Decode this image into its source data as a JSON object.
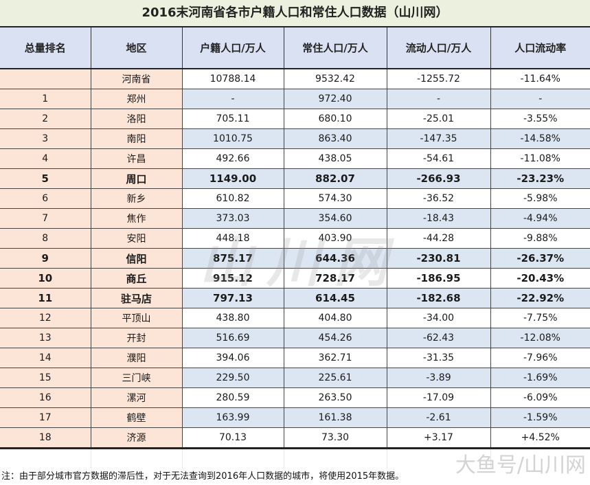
{
  "title": "2016末河南省各市户籍人口和常住人口数据（山川网）",
  "table": {
    "headers": [
      "总量排名",
      "地区",
      "户籍人口/万人",
      "常住人口/万人",
      "流动人口/万人",
      "人口流动率"
    ],
    "rows": [
      {
        "rank": "",
        "region": "河南省",
        "registered": "10788.14",
        "resident": "9532.42",
        "floating": "-1255.72",
        "rate": "-11.64%",
        "bold": false
      },
      {
        "rank": "1",
        "region": "郑州",
        "registered": "-",
        "resident": "972.40",
        "floating": "-",
        "rate": "-",
        "bold": false
      },
      {
        "rank": "2",
        "region": "洛阳",
        "registered": "705.11",
        "resident": "680.10",
        "floating": "-25.01",
        "rate": "-3.55%",
        "bold": false
      },
      {
        "rank": "3",
        "region": "南阳",
        "registered": "1010.75",
        "resident": "863.40",
        "floating": "-147.35",
        "rate": "-14.58%",
        "bold": false
      },
      {
        "rank": "4",
        "region": "许昌",
        "registered": "492.66",
        "resident": "438.05",
        "floating": "-54.61",
        "rate": "-11.08%",
        "bold": false
      },
      {
        "rank": "5",
        "region": "周口",
        "registered": "1149.00",
        "resident": "882.07",
        "floating": "-266.93",
        "rate": "-23.23%",
        "bold": true
      },
      {
        "rank": "6",
        "region": "新乡",
        "registered": "610.82",
        "resident": "574.30",
        "floating": "-36.52",
        "rate": "-5.98%",
        "bold": false
      },
      {
        "rank": "7",
        "region": "焦作",
        "registered": "373.03",
        "resident": "354.60",
        "floating": "-18.43",
        "rate": "-4.94%",
        "bold": false
      },
      {
        "rank": "8",
        "region": "安阳",
        "registered": "448.18",
        "resident": "403.90",
        "floating": "-44.28",
        "rate": "-9.88%",
        "bold": false
      },
      {
        "rank": "9",
        "region": "信阳",
        "registered": "875.17",
        "resident": "644.36",
        "floating": "-230.81",
        "rate": "-26.37%",
        "bold": true
      },
      {
        "rank": "10",
        "region": "商丘",
        "registered": "915.12",
        "resident": "728.17",
        "floating": "-186.95",
        "rate": "-20.43%",
        "bold": true
      },
      {
        "rank": "11",
        "region": "驻马店",
        "registered": "797.13",
        "resident": "614.45",
        "floating": "-182.68",
        "rate": "-22.92%",
        "bold": true
      },
      {
        "rank": "12",
        "region": "平顶山",
        "registered": "438.80",
        "resident": "404.80",
        "floating": "-34.00",
        "rate": "-7.75%",
        "bold": false
      },
      {
        "rank": "13",
        "region": "开封",
        "registered": "516.69",
        "resident": "454.26",
        "floating": "-62.43",
        "rate": "-12.08%",
        "bold": false
      },
      {
        "rank": "14",
        "region": "濮阳",
        "registered": "394.06",
        "resident": "362.71",
        "floating": "-31.35",
        "rate": "-7.96%",
        "bold": false
      },
      {
        "rank": "15",
        "region": "三门峡",
        "registered": "229.50",
        "resident": "225.61",
        "floating": "-3.89",
        "rate": "-1.69%",
        "bold": false
      },
      {
        "rank": "16",
        "region": "漯河",
        "registered": "280.59",
        "resident": "263.50",
        "floating": "-17.09",
        "rate": "-6.09%",
        "bold": false
      },
      {
        "rank": "17",
        "region": "鹤壁",
        "registered": "163.99",
        "resident": "161.38",
        "floating": "-2.61",
        "rate": "-1.59%",
        "bold": false
      },
      {
        "rank": "18",
        "region": "济源",
        "registered": "70.13",
        "resident": "73.30",
        "floating": "+3.17",
        "rate": "+4.52%",
        "bold": false
      }
    ]
  },
  "note": "注：由于部分城市官方数据的滞后性，对于无法查询到2016年人口数据的城市，将使用2015年数据。",
  "watermarks": {
    "center": "山川网",
    "corner": "大鱼号/山川网"
  },
  "colors": {
    "title_bg": "#ebf1de",
    "header_bg": "#d9e1f2",
    "rank_region_bg": "#fce4d6",
    "stripe_bg": "#dce6f2"
  }
}
